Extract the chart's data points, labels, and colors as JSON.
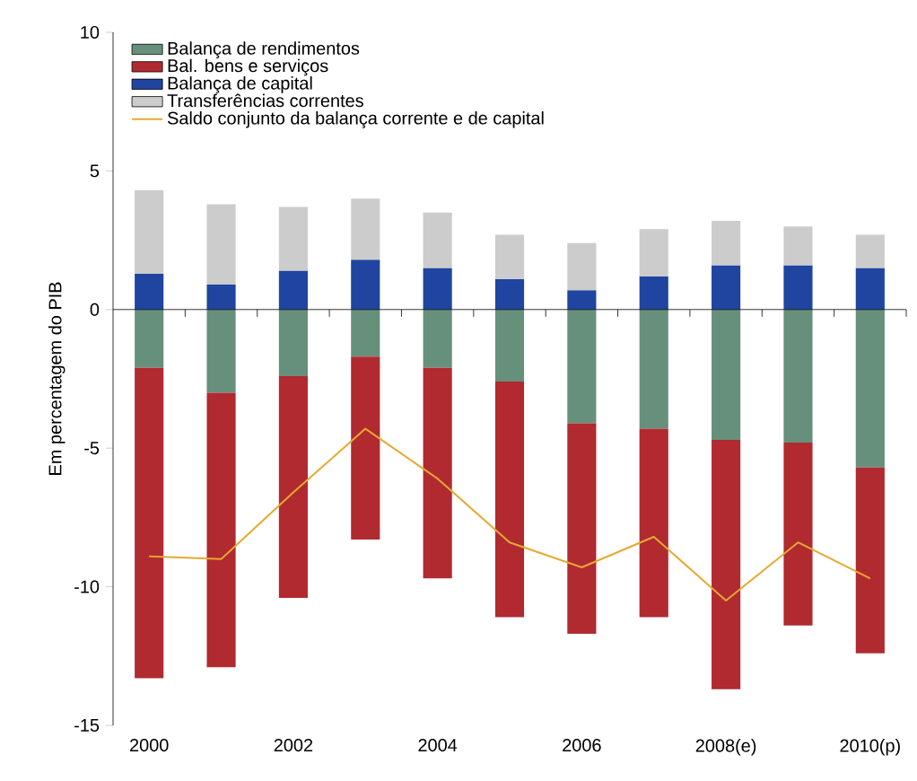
{
  "chart_data": {
    "type": "bar",
    "stacked": true,
    "ylabel": "Em percentagem do PIB",
    "categories": [
      "2000",
      null,
      "2002",
      null,
      "2004",
      null,
      "2006",
      null,
      "2008(e)",
      null,
      "2010(p)"
    ],
    "series": [
      {
        "name": "Balança de rendimentos",
        "color": "#66907c",
        "values": [
          -2.1,
          -3.0,
          -2.4,
          -1.7,
          -2.1,
          -2.6,
          -4.1,
          -4.3,
          -4.7,
          -4.8,
          -5.7
        ]
      },
      {
        "name": "Bal. bens e serviços",
        "color": "#b02a30",
        "values": [
          -11.2,
          -9.9,
          -8.0,
          -6.6,
          -7.6,
          -8.5,
          -7.6,
          -6.8,
          -9.0,
          -6.6,
          -6.7
        ]
      },
      {
        "name": "Balança de capital",
        "color": "#1f45a0",
        "values": [
          1.3,
          0.9,
          1.4,
          1.8,
          1.5,
          1.1,
          0.7,
          1.2,
          1.6,
          1.6,
          1.5
        ]
      },
      {
        "name": "Transferências correntes",
        "color": "#cccccc",
        "values": [
          3.0,
          2.9,
          2.3,
          2.2,
          2.0,
          1.6,
          1.7,
          1.7,
          1.6,
          1.4,
          1.2
        ]
      },
      {
        "name": "Saldo conjunto da balança corrente e de capital",
        "type": "line",
        "color": "#e8a830",
        "values": [
          -8.9,
          -9.0,
          -6.6,
          -4.3,
          -6.1,
          -8.4,
          -9.3,
          -8.2,
          -10.5,
          -8.4,
          -9.7
        ]
      }
    ],
    "ylim": [
      -15,
      10
    ],
    "yticks": [
      -15,
      -10,
      -5,
      0,
      5,
      10
    ],
    "legend": "top left"
  }
}
